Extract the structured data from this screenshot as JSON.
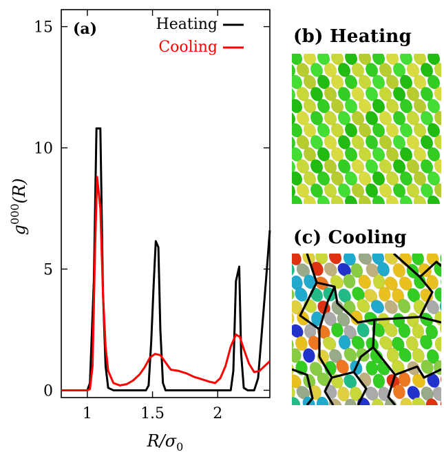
{
  "chart_data": {
    "type": "line",
    "panel_label": "(a)",
    "xlabel": "R/σ0",
    "ylabel": "g000(R)",
    "xlim": [
      0.8,
      2.4
    ],
    "ylim": [
      -0.3,
      15.7
    ],
    "xticks": [
      1,
      1.5,
      2
    ],
    "xtick_labels": [
      "1",
      "1.5",
      "2"
    ],
    "yticks": [
      0,
      5,
      10,
      15
    ],
    "ytick_labels": [
      "0",
      "5",
      "10",
      "15"
    ],
    "grid": false,
    "legend": "top-right",
    "series": [
      {
        "name": "Heating",
        "color": "#000000",
        "points": [
          [
            0.8,
            0
          ],
          [
            1.0,
            0
          ],
          [
            1.02,
            0.3
          ],
          [
            1.05,
            4.5
          ],
          [
            1.07,
            10.8
          ],
          [
            1.1,
            10.8
          ],
          [
            1.12,
            4.0
          ],
          [
            1.14,
            1.0
          ],
          [
            1.16,
            0.1
          ],
          [
            1.2,
            0
          ],
          [
            1.45,
            0
          ],
          [
            1.47,
            0.2
          ],
          [
            1.49,
            2.0
          ],
          [
            1.51,
            4.5
          ],
          [
            1.525,
            6.15
          ],
          [
            1.545,
            5.9
          ],
          [
            1.56,
            2.5
          ],
          [
            1.58,
            0.3
          ],
          [
            1.6,
            0
          ],
          [
            2.1,
            0
          ],
          [
            2.12,
            0.8
          ],
          [
            2.14,
            4.5
          ],
          [
            2.165,
            5.1
          ],
          [
            2.18,
            1.5
          ],
          [
            2.2,
            0.1
          ],
          [
            2.23,
            0
          ],
          [
            2.28,
            0
          ],
          [
            2.31,
            0.5
          ],
          [
            2.34,
            2.5
          ],
          [
            2.37,
            4.5
          ],
          [
            2.4,
            6.6
          ]
        ]
      },
      {
        "name": "Cooling",
        "color": "#ff0000",
        "points": [
          [
            0.8,
            0
          ],
          [
            1.0,
            0
          ],
          [
            1.02,
            0.05
          ],
          [
            1.04,
            1.0
          ],
          [
            1.06,
            6.0
          ],
          [
            1.075,
            8.8
          ],
          [
            1.1,
            7.5
          ],
          [
            1.12,
            4.0
          ],
          [
            1.14,
            1.8
          ],
          [
            1.16,
            0.8
          ],
          [
            1.2,
            0.3
          ],
          [
            1.25,
            0.2
          ],
          [
            1.3,
            0.25
          ],
          [
            1.35,
            0.4
          ],
          [
            1.4,
            0.65
          ],
          [
            1.44,
            0.95
          ],
          [
            1.48,
            1.35
          ],
          [
            1.52,
            1.5
          ],
          [
            1.56,
            1.45
          ],
          [
            1.6,
            1.15
          ],
          [
            1.64,
            0.85
          ],
          [
            1.7,
            0.8
          ],
          [
            1.76,
            0.7
          ],
          [
            1.82,
            0.55
          ],
          [
            1.88,
            0.45
          ],
          [
            1.94,
            0.35
          ],
          [
            1.98,
            0.3
          ],
          [
            2.02,
            0.5
          ],
          [
            2.06,
            1.0
          ],
          [
            2.1,
            1.8
          ],
          [
            2.14,
            2.3
          ],
          [
            2.17,
            2.2
          ],
          [
            2.2,
            1.7
          ],
          [
            2.24,
            1.1
          ],
          [
            2.28,
            0.75
          ],
          [
            2.32,
            0.8
          ],
          [
            2.36,
            1.0
          ],
          [
            2.4,
            1.2
          ]
        ]
      }
    ]
  },
  "panels": {
    "b_title": "(b) Heating",
    "c_title": "(c) Cooling"
  }
}
